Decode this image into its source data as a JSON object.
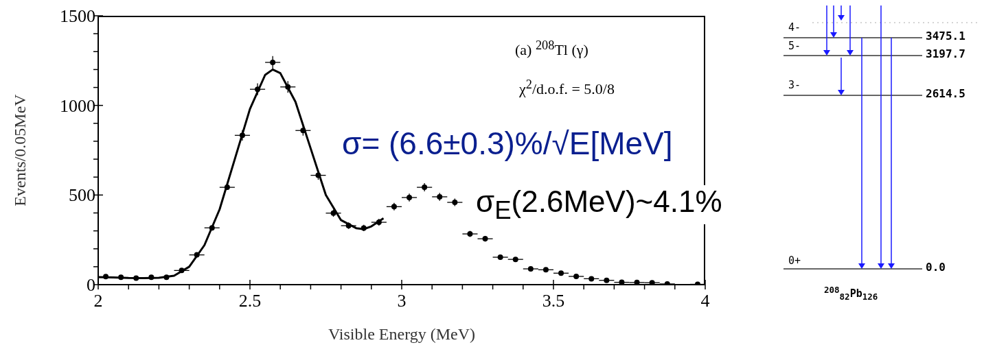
{
  "chart_data": {
    "type": "scatter",
    "xlabel": "Visible Energy (MeV)",
    "ylabel": "Events/0.05MeV",
    "xlim": [
      2,
      4
    ],
    "ylim": [
      0,
      1500
    ],
    "xticks": [
      2,
      {
        "value": 2.1,
        "label": null
      },
      {
        "value": 2.2,
        "label": null
      },
      {
        "value": 2.3,
        "label": null
      },
      {
        "value": 2.4,
        "label": null
      },
      2.5,
      {
        "value": 2.6,
        "label": null
      },
      {
        "value": 2.7,
        "label": null
      },
      {
        "value": 2.8,
        "label": null
      },
      {
        "value": 2.9,
        "label": null
      },
      3,
      {
        "value": 3.1,
        "label": null
      },
      {
        "value": 3.2,
        "label": null
      },
      {
        "value": 3.3,
        "label": null
      },
      {
        "value": 3.4,
        "label": null
      },
      3.5,
      {
        "value": 3.6,
        "label": null
      },
      {
        "value": 3.7,
        "label": null
      },
      {
        "value": 3.8,
        "label": null
      },
      {
        "value": 3.9,
        "label": null
      },
      4
    ],
    "yticks": [
      0,
      {
        "value": 100,
        "label": null
      },
      {
        "value": 200,
        "label": null
      },
      {
        "value": 300,
        "label": null
      },
      {
        "value": 400,
        "label": null
      },
      500,
      {
        "value": 600,
        "label": null
      },
      {
        "value": 700,
        "label": null
      },
      {
        "value": 800,
        "label": null
      },
      {
        "value": 900,
        "label": null
      },
      1000,
      {
        "value": 1100,
        "label": null
      },
      {
        "value": 1200,
        "label": null
      },
      {
        "value": 1300,
        "label": null
      },
      {
        "value": 1400,
        "label": null
      },
      1500
    ],
    "series": [
      {
        "type": "line",
        "color": "#000000",
        "marker": "none",
        "line_style": "solid",
        "x": [
          2.0,
          2.05,
          2.1,
          2.15,
          2.2,
          2.25,
          2.3,
          2.35,
          2.4,
          2.45,
          2.5,
          2.55,
          2.575,
          2.6,
          2.65,
          2.7,
          2.75,
          2.8,
          2.85,
          2.875,
          2.9,
          2.94
        ],
        "values": [
          42,
          40,
          37,
          36,
          38,
          50,
          100,
          220,
          420,
          700,
          980,
          1170,
          1200,
          1180,
          1020,
          760,
          500,
          360,
          315,
          310,
          325,
          370
        ]
      },
      {
        "color": "#000000",
        "marker": "circle",
        "x": [
          2.025,
          2.075,
          2.125,
          2.175,
          2.225,
          2.275,
          2.325,
          2.375,
          2.425,
          2.475,
          2.525,
          2.575,
          2.625,
          2.675,
          2.725,
          2.775,
          2.825,
          2.875,
          2.925,
          2.975,
          3.025,
          3.075,
          3.125,
          3.175,
          3.225,
          3.275,
          3.325,
          3.375,
          3.425,
          3.475,
          3.525,
          3.575,
          3.625,
          3.675,
          3.725,
          3.775,
          3.825,
          3.875,
          3.925,
          3.975
        ],
        "values": [
          45,
          41,
          36,
          41,
          41,
          79,
          166,
          317,
          543,
          833,
          1090,
          1240,
          1103,
          860,
          610,
          399,
          329,
          316,
          348,
          435,
          486,
          543,
          490,
          459,
          283,
          256,
          153,
          141,
          88,
          83,
          64,
          46,
          33,
          24,
          13,
          12,
          11,
          4,
          null,
          2
        ],
        "errors": [
          null,
          null,
          null,
          null,
          null,
          null,
          null,
          null,
          null,
          29,
          33,
          35,
          33,
          29,
          25,
          20,
          18,
          18,
          19,
          21,
          22,
          23,
          22,
          21,
          17,
          16,
          12,
          12,
          9,
          9,
          8,
          7,
          6,
          5,
          4,
          3,
          3,
          2,
          null,
          1
        ],
        "xerrors": [
          null,
          null,
          null,
          null,
          null,
          0.025,
          0.025,
          0.025,
          0.025,
          0.025,
          0.025,
          0.025,
          0.025,
          0.025,
          0.025,
          0.025,
          0.025,
          null,
          0.025,
          0.025,
          0.025,
          0.025,
          0.025,
          0.025,
          0.025,
          0.025,
          0.025,
          0.025,
          0.025,
          0.025,
          0.025,
          0.025,
          0.025,
          0.025,
          0.025,
          0.025,
          0.025,
          0.025,
          null,
          0.025
        ]
      }
    ],
    "annotations": [
      "(a) $^{208}$Tl (γ)",
      "χ$^{2}$/d.o.f. = 5.0/8",
      "σ= (6.6±0.3)%/√E[MeV]",
      "σ$_{E}$(2.6MeV)~4.1%",
      "4-",
      "5-",
      "3-",
      "0+",
      "3475.1",
      "3197.7",
      "2614.5",
      "0.0",
      "$^{208}$$_{82}$Pb$_{126}$"
    ]
  }
}
